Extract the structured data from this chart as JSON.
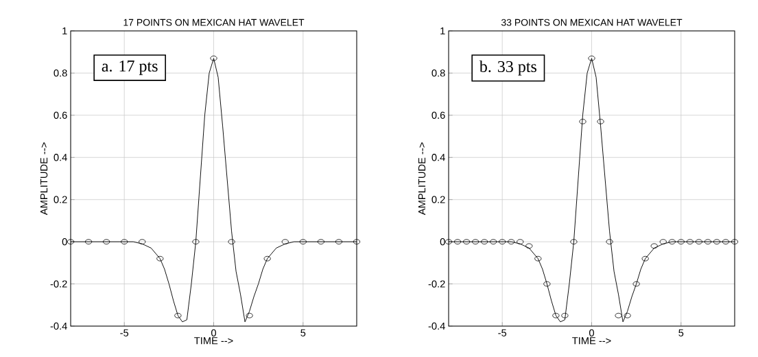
{
  "chart_data": [
    {
      "type": "line",
      "title": "17 POINTS ON MEXICAN HAT WAVELET",
      "xlabel": "TIME -->",
      "ylabel": "AMPLITUDE -->",
      "annotations": [
        "a. 17 pts"
      ],
      "xlim": [
        -8,
        8
      ],
      "xticks": [
        -5,
        0,
        5
      ],
      "ylim": [
        -0.4,
        1
      ],
      "yticks": [
        -0.4,
        -0.2,
        0,
        0.2,
        0.4,
        0.6,
        0.8,
        1
      ],
      "grid": true,
      "legend": false,
      "series": [
        {
          "color": "#000000",
          "marker": "none",
          "x": [
            -8,
            -5,
            -4.5,
            -4,
            -3.5,
            -3,
            -2.75,
            -2.5,
            -2.25,
            -2,
            -1.75,
            -1.5,
            -1.25,
            -1,
            -0.75,
            -0.5,
            -0.25,
            0,
            0.25,
            0.5,
            0.75,
            1,
            1.25,
            1.5,
            1.75,
            2,
            2.25,
            2.5,
            2.75,
            3,
            3.5,
            4,
            4.5,
            5,
            8
          ],
          "values": [
            0,
            0,
            0,
            -0.01,
            -0.03,
            -0.08,
            -0.13,
            -0.2,
            -0.28,
            -0.35,
            -0.38,
            -0.37,
            -0.2,
            0,
            0.3,
            0.6,
            0.8,
            0.87,
            0.78,
            0.55,
            0.3,
            0.05,
            -0.14,
            -0.25,
            -0.38,
            -0.33,
            -0.26,
            -0.2,
            -0.13,
            -0.08,
            -0.03,
            -0.01,
            0,
            0,
            0
          ]
        },
        {
          "type": "scatter",
          "color": "#000000",
          "marker": "circle",
          "x": [
            -8,
            -7,
            -6,
            -5,
            -4,
            -3,
            -2,
            -1,
            0,
            1,
            2,
            3,
            4,
            5,
            6,
            7,
            8
          ],
          "values": [
            0,
            0,
            0,
            0,
            0,
            -0.08,
            -0.35,
            0,
            0.87,
            0,
            -0.35,
            -0.08,
            0,
            0,
            0,
            0,
            0
          ]
        }
      ]
    },
    {
      "type": "line",
      "title": "33 POINTS ON MEXICAN HAT WAVELET",
      "xlabel": "TIME -->",
      "ylabel": "AMPLITUDE -->",
      "annotations": [
        "b. 33 pts"
      ],
      "xlim": [
        -8,
        8
      ],
      "xticks": [
        -5,
        0,
        5
      ],
      "ylim": [
        -0.4,
        1
      ],
      "yticks": [
        -0.4,
        -0.2,
        0,
        0.2,
        0.4,
        0.6,
        0.8,
        1
      ],
      "grid": true,
      "legend": false,
      "series": [
        {
          "color": "#000000",
          "marker": "none",
          "x": [
            -8,
            -5,
            -4.5,
            -4,
            -3.5,
            -3,
            -2.75,
            -2.5,
            -2.25,
            -2,
            -1.75,
            -1.5,
            -1.25,
            -1,
            -0.75,
            -0.5,
            -0.25,
            0,
            0.25,
            0.5,
            0.75,
            1,
            1.25,
            1.5,
            1.75,
            2,
            2.25,
            2.5,
            2.75,
            3,
            3.5,
            4,
            4.5,
            5,
            8
          ],
          "values": [
            0,
            0,
            0,
            -0.01,
            -0.03,
            -0.08,
            -0.13,
            -0.2,
            -0.28,
            -0.35,
            -0.38,
            -0.37,
            -0.2,
            0,
            0.3,
            0.6,
            0.8,
            0.87,
            0.78,
            0.55,
            0.3,
            0.05,
            -0.14,
            -0.25,
            -0.38,
            -0.33,
            -0.26,
            -0.2,
            -0.13,
            -0.08,
            -0.03,
            -0.01,
            0,
            0,
            0
          ]
        },
        {
          "type": "scatter",
          "color": "#000000",
          "marker": "circle",
          "x": [
            -8,
            -7.5,
            -7,
            -6.5,
            -6,
            -5.5,
            -5,
            -4.5,
            -4,
            -3.5,
            -3,
            -2.5,
            -2,
            -1.5,
            -1,
            -0.5,
            0,
            0.5,
            1,
            1.5,
            2,
            2.5,
            3,
            3.5,
            4,
            4.5,
            5,
            5.5,
            6,
            6.5,
            7,
            7.5,
            8
          ],
          "values": [
            0,
            0,
            0,
            0,
            0,
            0,
            0,
            0,
            0,
            -0.02,
            -0.08,
            -0.2,
            -0.35,
            -0.35,
            0,
            0.57,
            0.87,
            0.57,
            0,
            -0.35,
            -0.35,
            -0.2,
            -0.08,
            -0.02,
            0,
            0,
            0,
            0,
            0,
            0,
            0,
            0,
            0
          ]
        }
      ]
    }
  ]
}
